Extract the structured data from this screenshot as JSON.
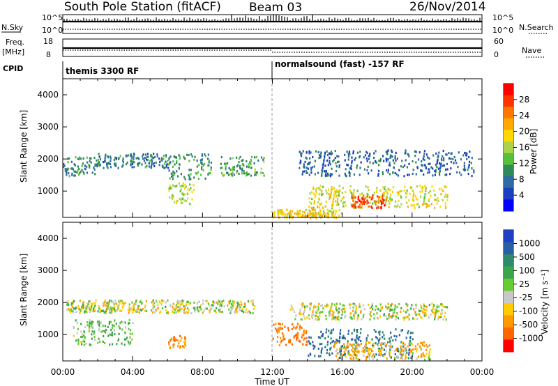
{
  "header": {
    "station": "South Pole Station (fitACF)",
    "beam": "Beam 03",
    "date": "26/Nov/2014"
  },
  "nsky_panel": {
    "left_label": "N.Sky",
    "left_ticks": [
      "10^5",
      "10^0"
    ],
    "right_ticks": [
      "10^5",
      "10^0"
    ],
    "right_label": "N.Search"
  },
  "freq_panel": {
    "left_label_1": "Freq.",
    "left_label_2": "[MHz]",
    "left_ticks": [
      "18",
      "8"
    ],
    "right_ticks": [
      "60",
      "0"
    ],
    "right_label": "Nave"
  },
  "cpid_panel": {
    "label": "CPID",
    "mode_1": "themis 3300 RF",
    "mode_2": "normalsound (fast) -157 RF"
  },
  "xaxis": {
    "ticks": [
      "00:00",
      "04:00",
      "08:00",
      "12:00",
      "16:00",
      "20:00",
      "00:00"
    ],
    "label": "Time UT"
  },
  "power_panel": {
    "ylabel": "Slant Range [km]",
    "yticks": [
      "1000",
      "2000",
      "3000",
      "4000"
    ],
    "colorbar_label": "Power [dB]",
    "colorbar_ticks": [
      "4",
      "8",
      "12",
      "16",
      "20",
      "24",
      "28"
    ],
    "colors": [
      "#0000ff",
      "#1a3fbf",
      "#2f6aa3",
      "#2e8b57",
      "#56c13a",
      "#a8d34a",
      "#ffd700",
      "#ffaa00",
      "#ff7700",
      "#ff3300",
      "#ff0000"
    ]
  },
  "velocity_panel": {
    "ylabel": "Slant Range [km]",
    "yticks": [
      "1000",
      "2000",
      "3000",
      "4000"
    ],
    "colorbar_label": "Velocity [m s⁻¹]",
    "colorbar_ticks": [
      "1000",
      "500",
      "100",
      "25",
      "-25",
      "-100",
      "-500",
      "-1000"
    ],
    "colors": [
      "#1e3fbf",
      "#2a5fa8",
      "#2e8a6a",
      "#3aa64a",
      "#66cc33",
      "#c8c8c8",
      "#ffcc00",
      "#ff9900",
      "#ff6600",
      "#ff0000"
    ]
  },
  "chart_data": {
    "type": "heatmap",
    "x_range_hours": [
      0,
      24
    ],
    "y_range_km": [
      180,
      4500
    ],
    "power_clusters": [
      {
        "t0": 0.0,
        "t1": 2.0,
        "r0": 1500,
        "r1": 2100,
        "power": 10
      },
      {
        "t0": 2.0,
        "t1": 6.0,
        "r0": 1750,
        "r1": 2200,
        "power": 9
      },
      {
        "t0": 6.0,
        "t1": 8.5,
        "r0": 1400,
        "r1": 2200,
        "power": 11
      },
      {
        "t0": 9.0,
        "t1": 11.5,
        "r0": 1500,
        "r1": 2100,
        "power": 12
      },
      {
        "t0": 13.5,
        "t1": 23.5,
        "r0": 1500,
        "r1": 2300,
        "power": 7
      },
      {
        "t0": 6.0,
        "t1": 7.5,
        "r0": 600,
        "r1": 1300,
        "power": 16
      },
      {
        "t0": 14.0,
        "t1": 22.0,
        "r0": 500,
        "r1": 1200,
        "power": 18
      },
      {
        "t0": 16.5,
        "t1": 18.5,
        "r0": 500,
        "r1": 900,
        "power": 28
      },
      {
        "t0": 12.0,
        "t1": 16.0,
        "r0": 200,
        "r1": 450,
        "power": 20
      }
    ],
    "velocity_clusters": [
      {
        "t0": 0.0,
        "t1": 11.0,
        "r0": 1700,
        "r1": 2100,
        "velocity": 0
      },
      {
        "t0": 13.0,
        "t1": 22.0,
        "r0": 1500,
        "r1": 2000,
        "velocity": 0
      },
      {
        "t0": 0.5,
        "t1": 4.0,
        "r0": 700,
        "r1": 1500,
        "velocity": 100
      },
      {
        "t0": 6.0,
        "t1": 7.0,
        "r0": 600,
        "r1": 1000,
        "velocity": -200
      },
      {
        "t0": 12.0,
        "t1": 14.0,
        "r0": 700,
        "r1": 1400,
        "velocity": -300
      },
      {
        "t0": 14.0,
        "t1": 20.0,
        "r0": 300,
        "r1": 1200,
        "velocity": 500
      },
      {
        "t0": 15.5,
        "t1": 21.0,
        "r0": 250,
        "r1": 800,
        "velocity": -100
      }
    ]
  }
}
